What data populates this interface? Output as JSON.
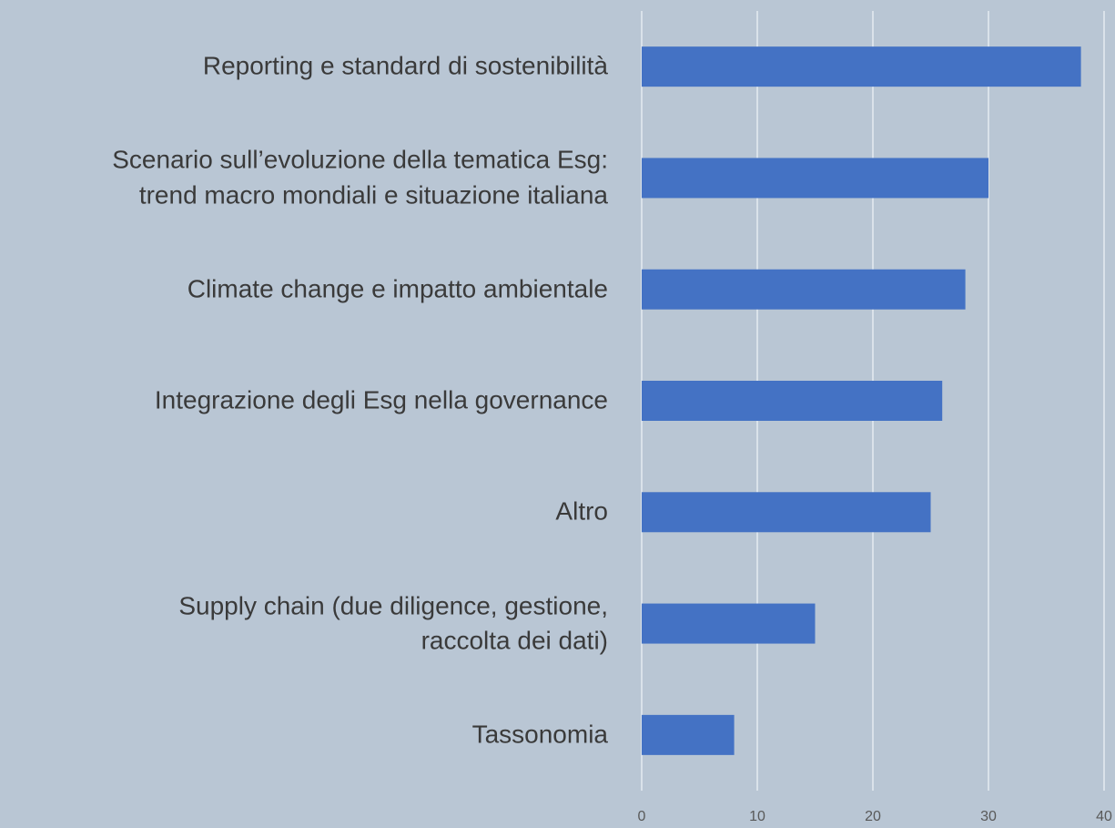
{
  "chart_data": {
    "type": "bar",
    "orientation": "horizontal",
    "categories": [
      "Reporting e standard di sostenibilità",
      "Scenario sull’evoluzione della tematica Esg:\ntrend macro mondiali e situazione italiana",
      "Climate change e impatto ambientale",
      "Integrazione degli Esg nella governance",
      "Altro",
      "Supply chain (due diligence, gestione,\nraccolta dei dati)",
      "Tassonomia"
    ],
    "values": [
      38,
      30,
      28,
      26,
      25,
      15,
      8
    ],
    "color": "#4472c4",
    "xlim": [
      0,
      40
    ],
    "xticks": [
      0,
      10,
      20,
      30,
      40
    ],
    "grid": true
  }
}
